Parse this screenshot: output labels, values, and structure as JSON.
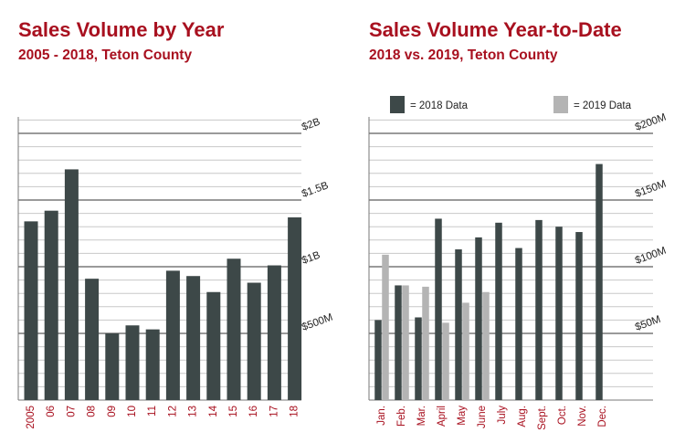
{
  "colors": {
    "title": "#a8101f",
    "bar_2018": "#3d4848",
    "bar_2019": "#b4b4b4",
    "grid": "#c8c8c8",
    "grid_major": "#9a9a9a",
    "axis_text": "#222222",
    "tick_red": "#a8101f"
  },
  "chart_data": [
    {
      "type": "bar",
      "title": "Sales Volume by Year",
      "subtitle": "2005 - 2018, Teton County",
      "categories": [
        "2005",
        "06",
        "07",
        "08",
        "09",
        "10",
        "11",
        "12",
        "13",
        "14",
        "15",
        "16",
        "17",
        "18"
      ],
      "series": [
        {
          "name": "Sales Volume",
          "values": [
            1.34,
            1.42,
            1.73,
            0.91,
            0.5,
            0.56,
            0.53,
            0.97,
            0.93,
            0.81,
            1.06,
            0.88,
            1.01,
            1.37
          ]
        }
      ],
      "ylim": [
        0,
        2
      ],
      "y_ticks": [
        {
          "value": 0.5,
          "label": "$500M"
        },
        {
          "value": 1,
          "label": "$1B"
        },
        {
          "value": 1.5,
          "label": "$1.5B"
        },
        {
          "value": 2,
          "label": "$2B"
        }
      ],
      "xlabel": "",
      "ylabel": "",
      "grid": true
    },
    {
      "type": "bar",
      "title": "Sales Volume Year-to-Date",
      "subtitle": "2018 vs. 2019, Teton County",
      "categories": [
        "Jan.",
        "Feb.",
        "Mar.",
        "April",
        "May",
        "June",
        "July",
        "Aug.",
        "Sept.",
        "Oct.",
        "Nov.",
        "Dec."
      ],
      "series": [
        {
          "name": "= 2018 Data",
          "values": [
            60,
            86,
            62,
            136,
            113,
            122,
            133,
            114,
            135,
            130,
            126,
            177
          ]
        },
        {
          "name": "= 2019 Data",
          "values": [
            109,
            86,
            85,
            58,
            73,
            81,
            null,
            null,
            null,
            null,
            null,
            null
          ]
        }
      ],
      "ylim": [
        0,
        200
      ],
      "y_ticks": [
        {
          "value": 50,
          "label": "$50M"
        },
        {
          "value": 100,
          "label": "$100M"
        },
        {
          "value": 150,
          "label": "$150M"
        },
        {
          "value": 200,
          "label": "$200M"
        }
      ],
      "legend": "top",
      "xlabel": "",
      "ylabel": "",
      "grid": true
    }
  ]
}
